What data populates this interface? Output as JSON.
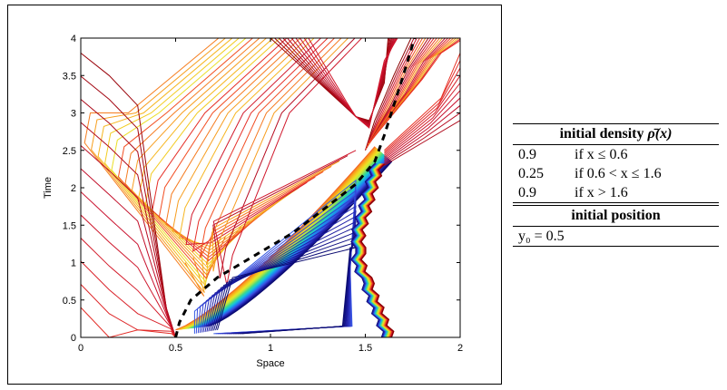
{
  "chart_data": {
    "type": "contour",
    "xlabel": "Space",
    "ylabel": "Time",
    "xlim": [
      0,
      2
    ],
    "ylim": [
      0,
      4
    ],
    "xticks": [
      "0",
      "0.5",
      "1",
      "1.5",
      "2"
    ],
    "yticks": [
      "0",
      "0.5",
      "1",
      "1.5",
      "2",
      "2.5",
      "3",
      "3.5",
      "4"
    ],
    "trajectory": {
      "style": "dashed-black",
      "points": [
        [
          0.5,
          0.0
        ],
        [
          0.52,
          0.2
        ],
        [
          0.58,
          0.5
        ],
        [
          0.72,
          0.8
        ],
        [
          0.92,
          1.1
        ],
        [
          1.12,
          1.4
        ],
        [
          1.3,
          1.75
        ],
        [
          1.45,
          2.05
        ],
        [
          1.55,
          2.35
        ],
        [
          1.6,
          2.7
        ],
        [
          1.65,
          3.1
        ],
        [
          1.7,
          3.5
        ],
        [
          1.76,
          4.0
        ]
      ]
    },
    "contour_colormap": [
      "#8b0000",
      "#c8102e",
      "#f03a24",
      "#f7931e",
      "#f6c21f",
      "#e6e827",
      "#a6e34d",
      "#40d98a",
      "#19c7d6",
      "#1b8ef0",
      "#3a4fe0",
      "#1f1fa8",
      "#0a0a70"
    ]
  },
  "table": {
    "density_header": "initial density ",
    "density_symbol": "ρ̄(x)",
    "rows": [
      {
        "value": "0.9",
        "condition": "if x ≤ 0.6"
      },
      {
        "value": "0.25",
        "condition": "if 0.6 < x ≤ 1.6"
      },
      {
        "value": "0.9",
        "condition": "if x > 1.6"
      }
    ],
    "position_header": "initial position",
    "position_value": "y₀ = 0.5"
  }
}
